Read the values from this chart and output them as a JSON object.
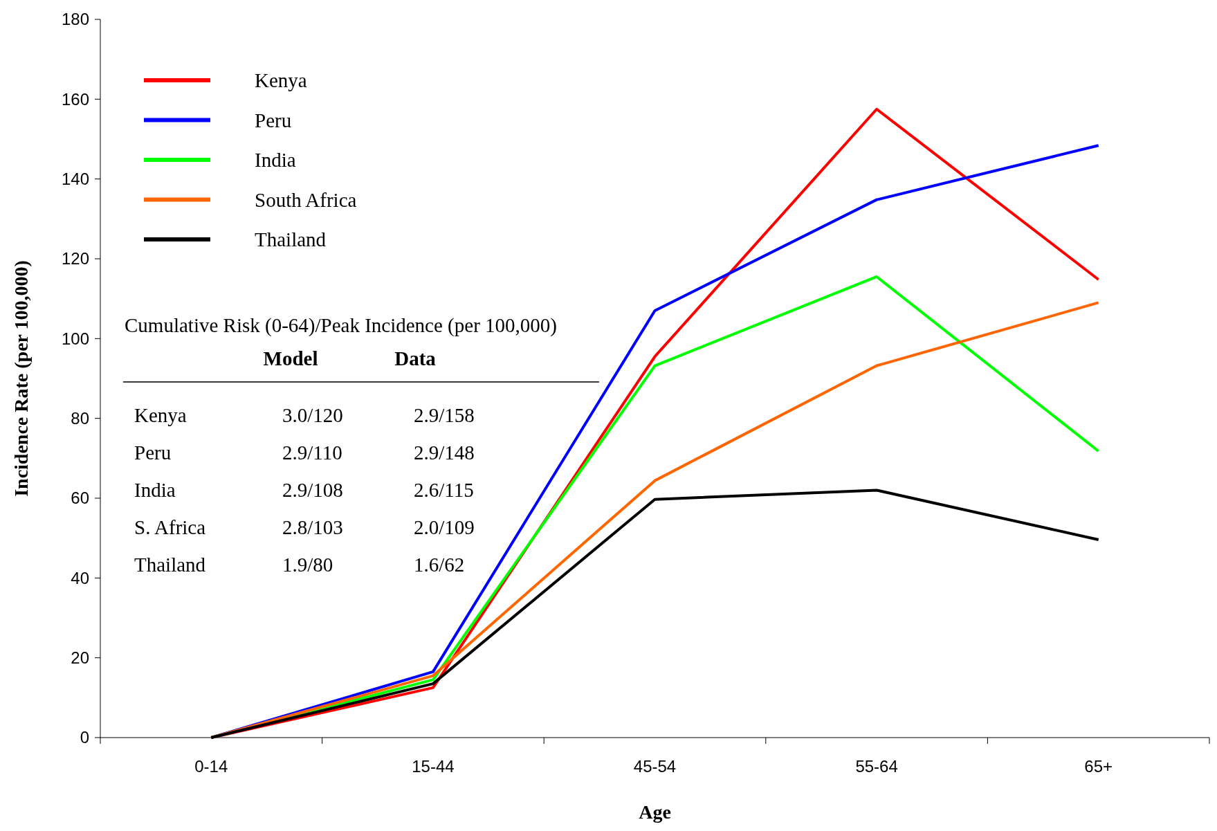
{
  "chart_data": {
    "type": "line",
    "xlabel": "Age",
    "ylabel": "Incidence Rate (per 100,000)",
    "categories": [
      "0-14",
      "15-44",
      "45-54",
      "55-64",
      "65+"
    ],
    "series": [
      {
        "name": "Kenya",
        "color": "#ff0000",
        "values": [
          0,
          12.5,
          95.5,
          157.5,
          114.8
        ]
      },
      {
        "name": "Peru",
        "color": "#0000ff",
        "values": [
          0,
          16.5,
          107,
          134.8,
          148.4
        ]
      },
      {
        "name": "India",
        "color": "#00ff00",
        "values": [
          0,
          14.5,
          93.2,
          115.5,
          71.8
        ]
      },
      {
        "name": "South Africa",
        "color": "#ff6600",
        "values": [
          0,
          15.5,
          64.4,
          93.2,
          109
        ]
      },
      {
        "name": "Thailand",
        "color": "#000000",
        "values": [
          0,
          13.5,
          59.7,
          62,
          49.6
        ]
      }
    ],
    "ylim": [
      0,
      180
    ],
    "yticks": [
      0,
      20,
      40,
      60,
      80,
      100,
      120,
      140,
      160,
      180
    ],
    "grid": false,
    "legend": "top left",
    "marker": "none",
    "line_style": "solid",
    "annotations": [
      "Cumulative Risk (0-64)/Peak Incidence (per 100,000)",
      "Model",
      "Data",
      "Kenya",
      "3.0/120",
      "2.9/158",
      "Peru",
      "2.9/110",
      "2.9/148",
      "India",
      "2.9/108",
      "2.6/115",
      "S. Africa",
      "2.8/103",
      "2.0/109",
      "Thailand",
      "1.9/80",
      "1.6/62"
    ]
  }
}
